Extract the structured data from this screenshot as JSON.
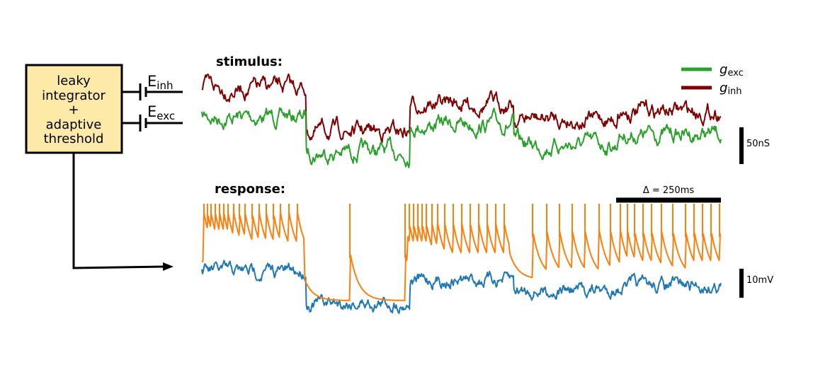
{
  "model_box": {
    "lines": [
      "leaky",
      "integrator",
      "+",
      "adaptive",
      "threshold"
    ],
    "fill": "#fde9a8"
  },
  "synapses": {
    "inh": {
      "symbol": "E",
      "subscript": "inh"
    },
    "exc": {
      "symbol": "E",
      "subscript": "exc"
    }
  },
  "stimulus": {
    "title": "stimulus:",
    "scale_bar": "50nS",
    "legend": [
      {
        "symbol": "g",
        "subscript": "exc",
        "color": "#2ca02c"
      },
      {
        "symbol": "g",
        "subscript": "inh",
        "color": "#7f0000"
      }
    ]
  },
  "response": {
    "title": "response:",
    "time_bar": "Δ = 250ms",
    "scale_bar": "10mV",
    "membrane_color": "#1f77b4",
    "threshold_color": "#ff7f0e"
  },
  "chart_data": {
    "type": "line",
    "series": [
      {
        "name": "g_exc",
        "color": "#2ca02c",
        "segments": [
          {
            "t": [
              0,
              0.2
            ],
            "level": 0.62
          },
          {
            "t": [
              0.2,
              0.4
            ],
            "level": 0.28
          },
          {
            "t": [
              0.4,
              0.6
            ],
            "level": 0.55
          },
          {
            "t": [
              0.6,
              0.8
            ],
            "level": 0.35
          },
          {
            "t": [
              0.8,
              1.0
            ],
            "level": 0.45
          }
        ]
      },
      {
        "name": "g_inh",
        "color": "#7f0000",
        "segments": [
          {
            "t": [
              0,
              0.2
            ],
            "level": 0.9
          },
          {
            "t": [
              0.2,
              0.4
            ],
            "level": 0.48
          },
          {
            "t": [
              0.4,
              0.6
            ],
            "level": 0.75
          },
          {
            "t": [
              0.6,
              0.8
            ],
            "level": 0.6
          },
          {
            "t": [
              0.8,
              1.0
            ],
            "level": 0.68
          }
        ]
      }
    ]
  }
}
